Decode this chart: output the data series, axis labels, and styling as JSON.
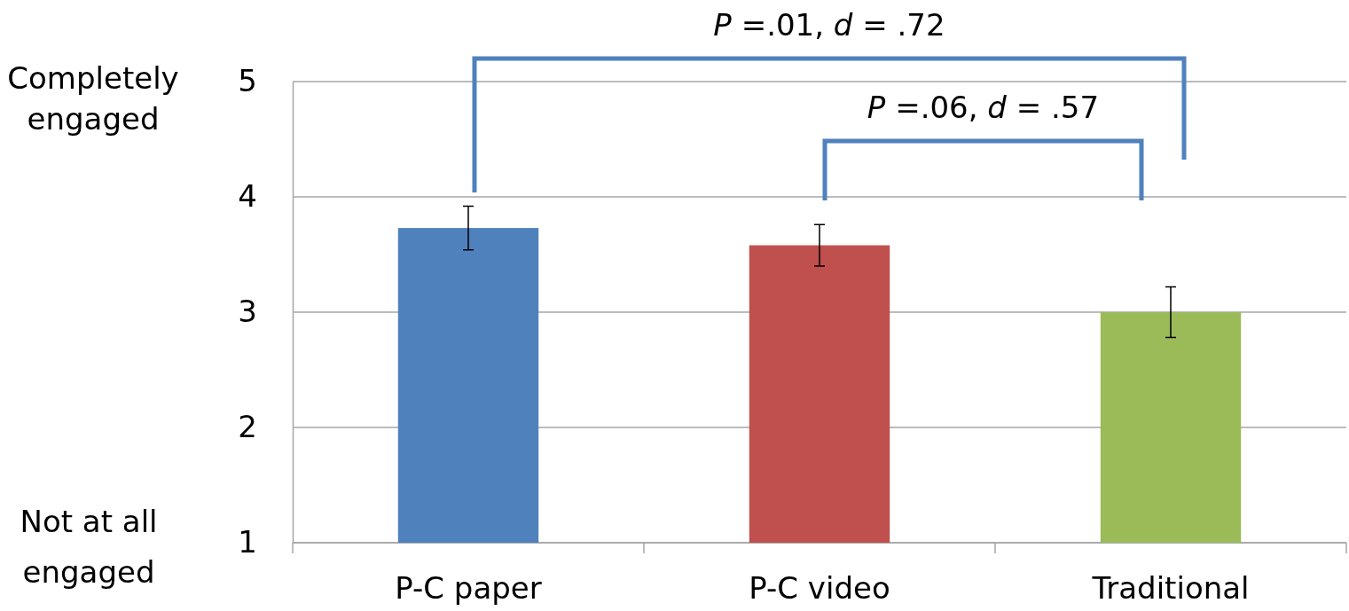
{
  "chart_data": {
    "type": "bar",
    "categories": [
      "P-C paper",
      "P-C video",
      "Traditional"
    ],
    "values": [
      3.73,
      3.58,
      3.0
    ],
    "colors": [
      "#4f81bd",
      "#c0504d",
      "#9bbb59"
    ],
    "errors": [
      0.19,
      0.18,
      0.22
    ],
    "ylim": [
      1,
      5
    ],
    "yticks": [
      1,
      2,
      3,
      4,
      5
    ],
    "grid": "y",
    "annotations": [
      "Completely engaged",
      "Not at all engaged",
      "P =.01, d = .72",
      "P =.06, d = .57"
    ]
  }
}
